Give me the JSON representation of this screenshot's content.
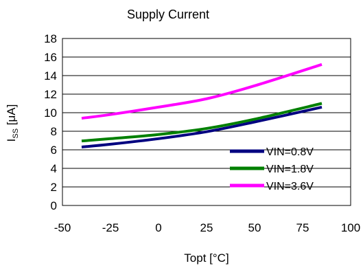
{
  "chart_data": {
    "type": "line",
    "title": "Supply Current",
    "xlabel": "Topt [°C]",
    "ylabel": {
      "main": "I",
      "sub": "SS",
      "unit": " [μA]"
    },
    "xlim": [
      -50,
      100
    ],
    "ylim": [
      0,
      18
    ],
    "xticks": [
      -50,
      -25,
      0,
      25,
      50,
      75,
      100
    ],
    "yticks": [
      0,
      2,
      4,
      6,
      8,
      10,
      12,
      14,
      16,
      18
    ],
    "grid": "horizontal",
    "legend_position": "bottom-right",
    "series": [
      {
        "name": "VIN=0.8V",
        "color": "#000080",
        "points": [
          [
            -40,
            6.3
          ],
          [
            -25,
            6.6
          ],
          [
            0,
            7.2
          ],
          [
            25,
            7.95
          ],
          [
            50,
            9.0
          ],
          [
            85,
            10.6
          ]
        ]
      },
      {
        "name": "VIN=1.8V",
        "color": "#008000",
        "points": [
          [
            -40,
            6.95
          ],
          [
            -25,
            7.2
          ],
          [
            0,
            7.65
          ],
          [
            25,
            8.3
          ],
          [
            50,
            9.3
          ],
          [
            85,
            11.0
          ]
        ]
      },
      {
        "name": "VIN=3.6V",
        "color": "#ff00ff",
        "points": [
          [
            -40,
            9.4
          ],
          [
            -25,
            9.8
          ],
          [
            0,
            10.6
          ],
          [
            25,
            11.5
          ],
          [
            50,
            12.9
          ],
          [
            85,
            15.2
          ]
        ]
      }
    ]
  }
}
